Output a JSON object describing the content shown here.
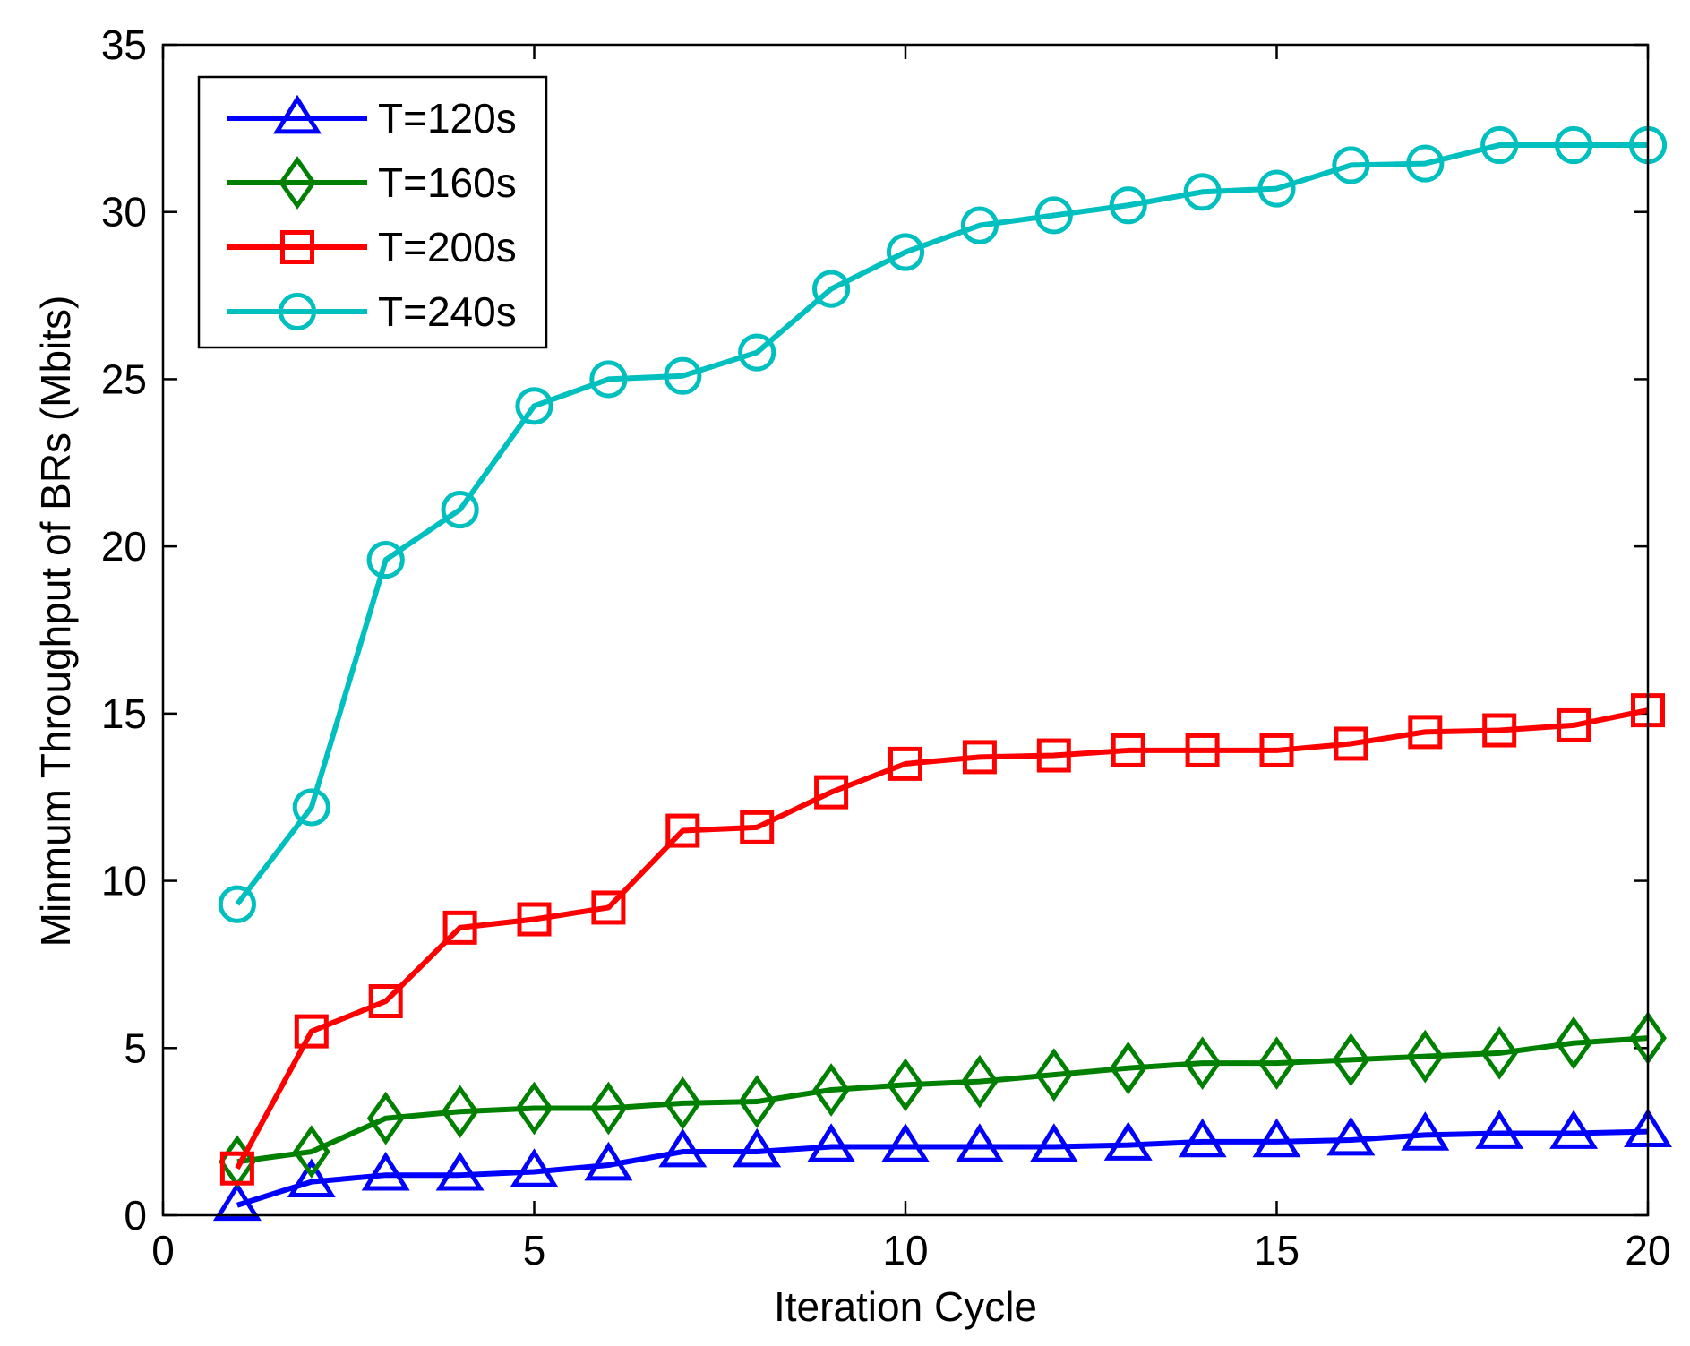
{
  "chart_data": {
    "type": "line",
    "title": "",
    "xlabel": "Iteration Cycle",
    "ylabel": "Minmum Throughput of BRs (Mbits)",
    "xlim": [
      0,
      20
    ],
    "ylim": [
      0,
      35
    ],
    "xticks": [
      0,
      5,
      10,
      15,
      20
    ],
    "yticks": [
      0,
      5,
      10,
      15,
      20,
      25,
      30,
      35
    ],
    "grid": false,
    "legend_position": "top-left",
    "x": [
      1,
      2,
      3,
      4,
      5,
      6,
      7,
      8,
      9,
      10,
      11,
      12,
      13,
      14,
      15,
      16,
      17,
      18,
      19,
      20
    ],
    "series": [
      {
        "name": "T=120s",
        "color": "#0000ff",
        "marker": "triangle",
        "values": [
          0.3,
          1.0,
          1.2,
          1.2,
          1.3,
          1.5,
          1.9,
          1.9,
          2.05,
          2.05,
          2.05,
          2.05,
          2.1,
          2.2,
          2.2,
          2.25,
          2.4,
          2.45,
          2.45,
          2.5
        ]
      },
      {
        "name": "T=160s",
        "color": "#008000",
        "marker": "diamond",
        "values": [
          1.6,
          1.9,
          2.9,
          3.1,
          3.2,
          3.2,
          3.35,
          3.4,
          3.75,
          3.9,
          4.0,
          4.2,
          4.4,
          4.55,
          4.55,
          4.65,
          4.75,
          4.85,
          5.15,
          5.3
        ]
      },
      {
        "name": "T=200s",
        "color": "#ff0000",
        "marker": "square",
        "values": [
          1.4,
          5.5,
          6.4,
          8.6,
          8.85,
          9.2,
          11.5,
          11.6,
          12.65,
          13.5,
          13.7,
          13.75,
          13.9,
          13.9,
          13.9,
          14.1,
          14.45,
          14.5,
          14.65,
          15.1
        ]
      },
      {
        "name": "T=240s",
        "color": "#00bfbf",
        "marker": "circle",
        "values": [
          9.3,
          12.2,
          19.6,
          21.1,
          24.2,
          25.0,
          25.1,
          25.8,
          27.7,
          28.8,
          29.6,
          29.9,
          30.2,
          30.6,
          30.7,
          31.4,
          31.45,
          32.0,
          32.0,
          32.0
        ]
      }
    ]
  }
}
